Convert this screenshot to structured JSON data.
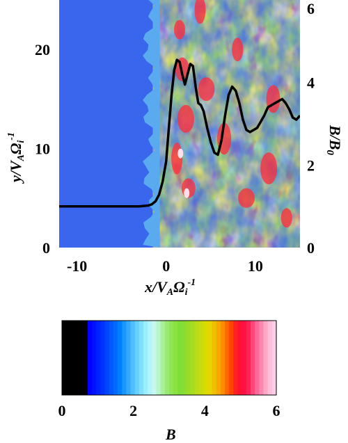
{
  "chart_data": {
    "type": "heatmap",
    "x_axis": {
      "range": [
        -12,
        15
      ],
      "ticks": [
        "-10",
        "0",
        "10"
      ],
      "tick_values": [
        -10,
        0,
        10
      ]
    },
    "y_left_axis": {
      "range": [
        0,
        25
      ],
      "ticks": [
        "0",
        "10",
        "20"
      ],
      "tick_values": [
        0,
        10,
        20
      ]
    },
    "y_right_axis": {
      "range": [
        0,
        6
      ],
      "ticks": [
        "0",
        "2",
        "4",
        "6"
      ],
      "tick_values": [
        0,
        2,
        4,
        6
      ]
    },
    "xlabel": {
      "main": "x/V",
      "sub": "A",
      "omega": "Ω",
      "omegasub": "i",
      "sup": "-1"
    },
    "ylabel": {
      "main": "y/V",
      "sub": "A",
      "omega": "Ω",
      "omegasub": "i",
      "sup": "-1"
    },
    "ylabel_right": {
      "main": "B/B",
      "sub": "0"
    },
    "background_field": "blue",
    "turbulent_region_start_x": -1.5,
    "profile_line": {
      "name": "B/B0",
      "color": "#000000",
      "x": [
        -12,
        -10,
        -8,
        -6,
        -4,
        -3,
        -2,
        -1.6,
        -1.2,
        -0.8,
        -0.4,
        0,
        0.3,
        0.6,
        0.9,
        1.2,
        1.5,
        1.8,
        2.1,
        2.4,
        2.7,
        3.0,
        3.3,
        3.6,
        3.9,
        4.2,
        4.6,
        5.0,
        5.4,
        5.8,
        6.2,
        6.6,
        7.0,
        7.4,
        7.8,
        8.2,
        8.6,
        9.0,
        9.4,
        9.8,
        10.2,
        10.6,
        11.0,
        11.4,
        11.8,
        12.2,
        12.6,
        13.0,
        13.4,
        13.8,
        14.2,
        14.6,
        15
      ],
      "y": [
        1.0,
        1.0,
        1.0,
        1.0,
        1.0,
        1.0,
        1.02,
        1.05,
        1.12,
        1.28,
        1.6,
        2.1,
        2.9,
        3.7,
        4.3,
        4.55,
        4.5,
        4.2,
        3.95,
        4.2,
        4.45,
        4.4,
        3.9,
        3.5,
        3.45,
        3.3,
        2.9,
        2.55,
        2.3,
        2.25,
        2.6,
        3.2,
        3.7,
        3.9,
        3.8,
        3.5,
        3.1,
        2.85,
        2.8,
        2.85,
        2.9,
        3.05,
        3.2,
        3.4,
        3.45,
        3.5,
        3.55,
        3.6,
        3.5,
        3.35,
        3.15,
        3.1,
        3.2
      ]
    },
    "colorbar": {
      "range": [
        0,
        6
      ],
      "ticks": [
        "0",
        "2",
        "4",
        "6"
      ],
      "tick_values": [
        0,
        2,
        4,
        6
      ],
      "label": "B",
      "colors": [
        "#000000",
        "#000000",
        "#000000",
        "#000000",
        "#000000",
        "#000000",
        "#0000ff",
        "#0011ff",
        "#0022ff",
        "#0033ff",
        "#0044ff",
        "#0058ff",
        "#006cff",
        "#0080ff",
        "#1996ff",
        "#33aaff",
        "#4dbeff",
        "#66d0ff",
        "#80e0ff",
        "#99eeff",
        "#b3f5ff",
        "#c8f7f0",
        "#b8f5c8",
        "#a8f09a",
        "#98ea70",
        "#90e650",
        "#88e240",
        "#80de38",
        "#88dd30",
        "#98dc28",
        "#a8dc20",
        "#b8dc18",
        "#c8dc10",
        "#d8dc00",
        "#e8d400",
        "#f0c000",
        "#f8a800",
        "#ff8c00",
        "#ff6600",
        "#ff4400",
        "#ff2222",
        "#ff1133",
        "#ff1144",
        "#ff2255",
        "#ff4477",
        "#ff6699",
        "#ff88b0",
        "#ffa8c8",
        "#ffc0d8",
        "#ffd0e8"
      ]
    }
  }
}
